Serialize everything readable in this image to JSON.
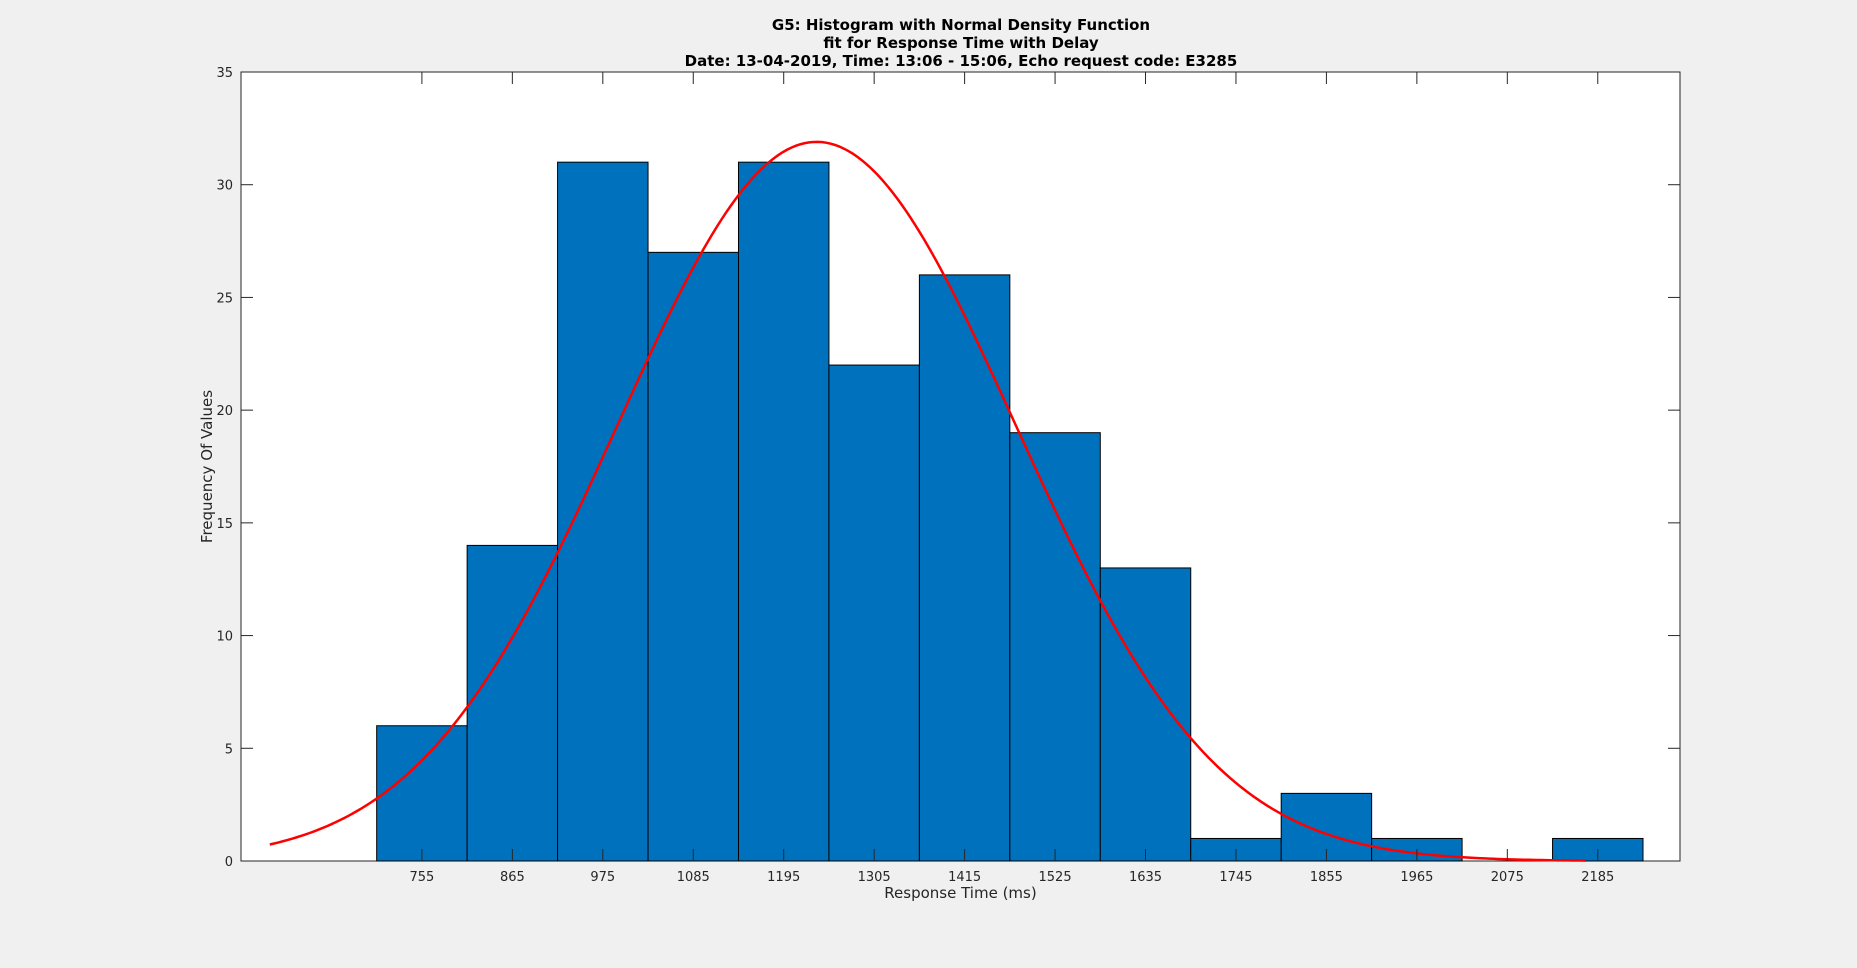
{
  "chart_data": {
    "type": "bar",
    "title": [
      "G5: Histogram with Normal Density Function",
      "fit for Response Time with Delay",
      "Date: 13-04-2019, Time: 13:06 - 15:06, Echo request code: E3285"
    ],
    "xlabel": "Response Time (ms)",
    "ylabel": "Frequency Of Values",
    "xlim": [
      535,
      2285
    ],
    "ylim": [
      0,
      35
    ],
    "xticks": [
      755,
      865,
      975,
      1085,
      1195,
      1305,
      1415,
      1525,
      1635,
      1745,
      1855,
      1965,
      2075,
      2185
    ],
    "yticks": [
      0,
      5,
      10,
      15,
      20,
      25,
      30,
      35
    ],
    "bins": [
      {
        "center": 755,
        "count": 6
      },
      {
        "center": 865,
        "count": 14
      },
      {
        "center": 975,
        "count": 31
      },
      {
        "center": 1085,
        "count": 27
      },
      {
        "center": 1195,
        "count": 31
      },
      {
        "center": 1305,
        "count": 22
      },
      {
        "center": 1415,
        "count": 26
      },
      {
        "center": 1525,
        "count": 19
      },
      {
        "center": 1635,
        "count": 13
      },
      {
        "center": 1745,
        "count": 1
      },
      {
        "center": 1855,
        "count": 3
      },
      {
        "center": 1965,
        "count": 1
      },
      {
        "center": 2075,
        "count": 0
      },
      {
        "center": 2185,
        "count": 1
      }
    ],
    "bin_width": 110,
    "normal_fit": {
      "mean": 1235,
      "peak": 31.9,
      "sigma": 242,
      "x_range": [
        570,
        2170
      ]
    },
    "grid": false,
    "colors": {
      "bars": "#0072bd",
      "bar_edge": "#000000",
      "fit_line": "#ff0000",
      "axes_bg": "#ffffff",
      "figure_bg": "#f0f0f0"
    }
  }
}
